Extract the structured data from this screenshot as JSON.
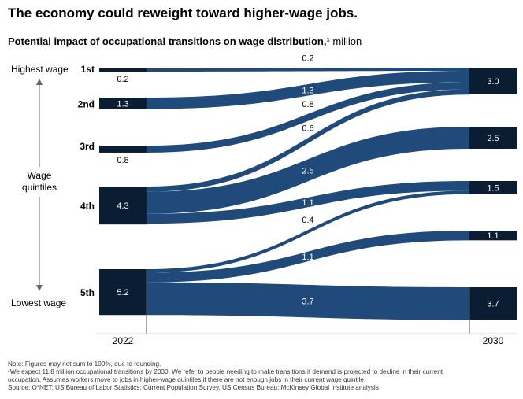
{
  "title": "The economy could reweight toward higher-wage jobs.",
  "subtitle": {
    "bold": "Potential impact of occupational transitions on wage distribution,¹",
    "unit": " million"
  },
  "side_labels": {
    "highest": "Highest wage",
    "middle": [
      "Wage",
      "quintiles"
    ],
    "lowest": "Lowest wage"
  },
  "footnotes": [
    "Note: Figures may not sum to 100%, due to rounding.",
    "¹We expect 11.8 million occupational transitions by 2030. We refer to people needing to make transitions if demand is projected to decline in their current",
    "occupation. Assumes workers move to jobs in higher-wage quintiles if there are not enough jobs in their current wage quintile.",
    "Source: O*NET; US Bureau of Labor Statistics; Current Population Survey, US Census Bureau; McKinsey Global Institute analysis"
  ],
  "chart_data": {
    "type": "sankey",
    "unit": "million",
    "columns": [
      "2022",
      "2030"
    ],
    "left_nodes": [
      {
        "label": "1st",
        "value": 0.2,
        "value_label": "0.2"
      },
      {
        "label": "2nd",
        "value": 1.3,
        "value_label": "1.3"
      },
      {
        "label": "3rd",
        "value": 0.8,
        "value_label": "0.8"
      },
      {
        "label": "4th",
        "value": 4.3,
        "value_label": "4.3"
      },
      {
        "label": "5th",
        "value": 5.2,
        "value_label": "5.2"
      }
    ],
    "right_nodes": [
      {
        "value": 3.0,
        "value_label": "3.0"
      },
      {
        "value": 2.5,
        "value_label": "2.5"
      },
      {
        "value": 1.5,
        "value_label": "1.5"
      },
      {
        "value": 1.1,
        "value_label": "1.1"
      },
      {
        "value": 3.7,
        "value_label": "3.7"
      }
    ],
    "flows": [
      {
        "from": 0,
        "to": 0,
        "value": 0.2,
        "label": "0.2"
      },
      {
        "from": 1,
        "to": 0,
        "value": 1.3,
        "label": "1.3"
      },
      {
        "from": 2,
        "to": 0,
        "value": 0.8,
        "label": "0.8"
      },
      {
        "from": 3,
        "to": 0,
        "value": 0.6,
        "label": "0.6"
      },
      {
        "from": 3,
        "to": 1,
        "value": 2.5,
        "label": "2.5"
      },
      {
        "from": 3,
        "to": 2,
        "value": 1.1,
        "label": "1.1"
      },
      {
        "from": 4,
        "to": 2,
        "value": 0.4,
        "label": "0.4"
      },
      {
        "from": 4,
        "to": 3,
        "value": 1.1,
        "label": "1.1"
      },
      {
        "from": 4,
        "to": 4,
        "value": 3.7,
        "label": "3.7"
      }
    ],
    "colors": {
      "node": "#0b1d33",
      "flow": "#1f4a7a",
      "label_light": "#ffffff",
      "label_dark": "#000000",
      "axis": "#555555"
    }
  }
}
